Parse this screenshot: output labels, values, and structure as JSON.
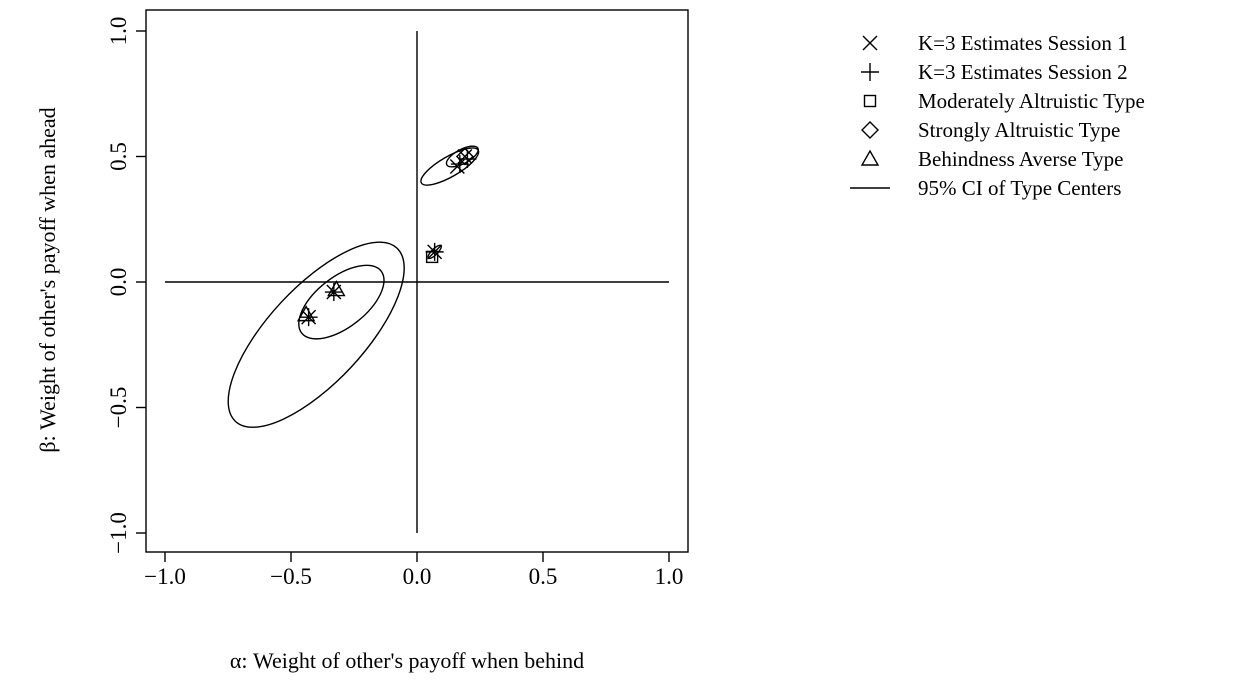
{
  "chart_data": {
    "type": "scatter",
    "xlabel": "α: Weight of other's payoff when behind",
    "ylabel": "β: Weight of other's payoff when ahead",
    "xlim": [
      -1.0,
      1.0
    ],
    "ylim": [
      -1.0,
      1.0
    ],
    "xticks": [
      -1.0,
      -0.5,
      0.0,
      0.5,
      1.0
    ],
    "yticks": [
      -1.0,
      -0.5,
      0.0,
      0.5,
      1.0
    ],
    "xtick_labels": [
      "−1.0",
      "−0.5",
      "0.0",
      "0.5",
      "1.0"
    ],
    "ytick_labels": [
      "−1.0",
      "−0.5",
      "0.0",
      "0.5",
      "1.0"
    ],
    "grid": false,
    "legend_position": "right-outside-top",
    "legend": [
      {
        "label": "K=3 Estimates Session 1",
        "symbol": "cross"
      },
      {
        "label": "K=3 Estimates Session 2",
        "symbol": "plus"
      },
      {
        "label": "Moderately Altruistic Type",
        "symbol": "square"
      },
      {
        "label": "Strongly Altruistic Type",
        "symbol": "diamond"
      },
      {
        "label": "Behindness Averse Type",
        "symbol": "triangle"
      },
      {
        "label": "95% CI of Type Centers",
        "symbol": "line"
      }
    ],
    "reference_lines": [
      {
        "orientation": "horizontal",
        "y": 0.0,
        "x_from": -1.0,
        "x_to": 1.0
      },
      {
        "orientation": "vertical",
        "x": 0.0,
        "y_from": -1.0,
        "y_to": 1.0
      }
    ],
    "series": [
      {
        "name": "K=3 Estimates Session 1",
        "symbol": "cross",
        "points": [
          [
            0.07,
            0.12
          ],
          [
            0.16,
            0.46
          ],
          [
            0.19,
            0.5
          ],
          [
            -0.43,
            -0.14
          ],
          [
            -0.33,
            -0.04
          ]
        ]
      },
      {
        "name": "K=3 Estimates Session 2",
        "symbol": "plus",
        "points": [
          [
            0.07,
            0.12
          ],
          [
            0.17,
            0.47
          ],
          [
            0.2,
            0.49
          ],
          [
            -0.43,
            -0.14
          ],
          [
            -0.33,
            -0.04
          ]
        ]
      },
      {
        "name": "Moderately Altruistic Type",
        "symbol": "square",
        "points": [
          [
            0.06,
            0.1
          ]
        ]
      },
      {
        "name": "Strongly Altruistic Type",
        "symbol": "diamond",
        "points": [
          [
            0.19,
            0.5
          ]
        ]
      },
      {
        "name": "Behindness Averse Type",
        "symbol": "triangle",
        "points": [
          [
            -0.44,
            -0.13
          ],
          [
            -0.32,
            -0.03
          ]
        ]
      }
    ],
    "ci_ellipses": [
      {
        "group": "Moderately Altruistic Type",
        "center": [
          0.07,
          0.12
        ],
        "rx": 0.035,
        "ry": 0.012,
        "angle": 45
      },
      {
        "group": "Strongly Altruistic Type",
        "center": [
          0.18,
          0.5
        ],
        "rx": 0.07,
        "ry": 0.028,
        "angle": 28
      },
      {
        "group": "Strongly Altruistic Type",
        "center": [
          0.13,
          0.46
        ],
        "rx": 0.13,
        "ry": 0.04,
        "angle": 30
      },
      {
        "group": "Behindness Averse Type",
        "center": [
          -0.3,
          -0.08
        ],
        "rx": 0.2,
        "ry": 0.1,
        "angle": 38
      },
      {
        "group": "Behindness Averse Type",
        "center": [
          -0.4,
          -0.21
        ],
        "rx": 0.47,
        "ry": 0.19,
        "angle": 47
      }
    ]
  }
}
